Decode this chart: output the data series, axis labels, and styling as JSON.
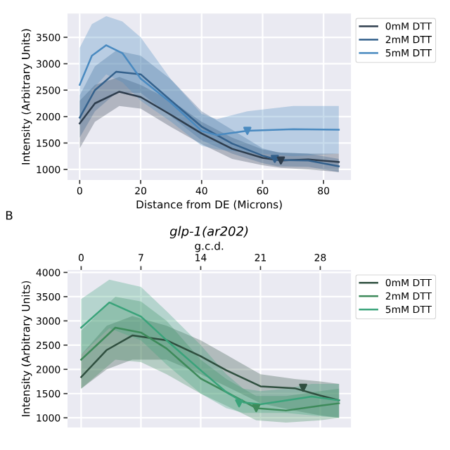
{
  "chart_data": [
    {
      "type": "line",
      "xlabel": "Distance from DE (Microns)",
      "ylabel": "Intensity (Arbitrary Units)",
      "xlim": [
        -4,
        89
      ],
      "xticks": [
        0,
        20,
        40,
        60,
        80
      ],
      "ylim": [
        800,
        3950
      ],
      "yticks": [
        1000,
        1500,
        2000,
        2500,
        3000,
        3500
      ],
      "grid": true,
      "legend": "right",
      "series": [
        {
          "name": "0mM DTT",
          "color": "#2e3d4d",
          "x": [
            0,
            5,
            13,
            20,
            30,
            40,
            50,
            60,
            66,
            75,
            85
          ],
          "values": [
            1870,
            2250,
            2470,
            2370,
            2030,
            1680,
            1390,
            1220,
            1170,
            1190,
            1140
          ],
          "lower": [
            1400,
            1900,
            2200,
            2150,
            1800,
            1480,
            1200,
            1080,
            1030,
            1000,
            950
          ],
          "upper": [
            2300,
            2600,
            2750,
            2600,
            2300,
            1900,
            1600,
            1380,
            1320,
            1300,
            1300
          ]
        },
        {
          "name": "2mM DTT",
          "color": "#34618c",
          "x": [
            0,
            5,
            12,
            20,
            30,
            40,
            50,
            60,
            65,
            75,
            85
          ],
          "values": [
            1980,
            2500,
            2850,
            2800,
            2300,
            1810,
            1490,
            1260,
            1180,
            1170,
            1060
          ],
          "lower": [
            1600,
            2100,
            2450,
            2450,
            2000,
            1550,
            1300,
            1120,
            1060,
            1050,
            950
          ],
          "upper": [
            2400,
            2950,
            3250,
            3150,
            2700,
            2100,
            1750,
            1400,
            1320,
            1300,
            1200
          ]
        },
        {
          "name": "5mM DTT",
          "color": "#4a8ac0",
          "x": [
            0,
            4,
            8.7,
            14,
            20,
            30,
            40,
            45,
            55,
            70,
            85
          ],
          "values": [
            2600,
            3150,
            3350,
            3200,
            2720,
            2260,
            1730,
            1650,
            1730,
            1760,
            1750
          ],
          "lower": [
            1900,
            2500,
            2800,
            2650,
            2300,
            1900,
            1450,
            1380,
            1320,
            1250,
            1300
          ],
          "upper": [
            3300,
            3750,
            3900,
            3800,
            3500,
            2700,
            2050,
            1950,
            2100,
            2200,
            2200
          ]
        },
        {
          "type": "scatter",
          "marker": "triangle",
          "color": "#4a8ac0",
          "x": [
            55
          ],
          "values": [
            1730
          ]
        },
        {
          "type": "scatter",
          "marker": "triangle",
          "color": "#34618c",
          "x": [
            64
          ],
          "values": [
            1200
          ]
        },
        {
          "type": "scatter",
          "marker": "triangle",
          "color": "#2e3d4d",
          "x": [
            66
          ],
          "values": [
            1170
          ]
        }
      ]
    },
    {
      "type": "line",
      "title": "glp-1(ar202)",
      "xlabel": "g.c.d.",
      "ylabel": "Intensity (Arbitrary Units)",
      "xlim": [
        -1.6,
        31.6
      ],
      "xticks": [
        0,
        7,
        14,
        21,
        28
      ],
      "ylim": [
        800,
        4050
      ],
      "yticks": [
        1000,
        1500,
        2000,
        2500,
        3000,
        3500,
        4000
      ],
      "grid": true,
      "legend": "right",
      "annotations": [
        "B"
      ],
      "series": [
        {
          "name": "0mM DTT",
          "color": "#2f4f3f",
          "x": [
            0,
            3,
            6,
            10,
            14,
            17,
            21,
            25,
            28,
            30.2
          ],
          "values": [
            1840,
            2400,
            2700,
            2600,
            2270,
            1980,
            1650,
            1610,
            1460,
            1360
          ],
          "lower": [
            1600,
            2000,
            2200,
            2200,
            1900,
            1650,
            1300,
            1150,
            1050,
            1000
          ],
          "upper": [
            2300,
            2900,
            3100,
            2900,
            2600,
            2300,
            1900,
            1800,
            1750,
            1700
          ]
        },
        {
          "name": "2mM DTT",
          "color": "#3d8a5a",
          "x": [
            0,
            4,
            7,
            10,
            14,
            17,
            20.5,
            24,
            28,
            30.2
          ],
          "values": [
            2200,
            2860,
            2760,
            2430,
            1810,
            1530,
            1200,
            1150,
            1250,
            1300
          ],
          "lower": [
            1600,
            2200,
            2150,
            1900,
            1500,
            1250,
            950,
            900,
            950,
            1000
          ],
          "upper": [
            2800,
            3500,
            3400,
            3000,
            2200,
            1800,
            1450,
            1450,
            1550,
            1600
          ]
        },
        {
          "name": "5mM DTT",
          "color": "#3aa37a",
          "x": [
            0,
            3.3,
            7,
            10,
            14,
            17,
            19,
            21,
            24,
            27,
            30.2
          ],
          "values": [
            2860,
            3380,
            3090,
            2600,
            1980,
            1530,
            1320,
            1280,
            1360,
            1440,
            1360
          ],
          "lower": [
            2300,
            2850,
            2600,
            2100,
            1500,
            1200,
            1100,
            1100,
            1100,
            1050,
            1000
          ],
          "upper": [
            3450,
            3850,
            3700,
            3200,
            2500,
            1900,
            1600,
            1550,
            1600,
            1700,
            1700
          ]
        },
        {
          "type": "scatter",
          "marker": "triangle",
          "color": "#2f4f3f",
          "x": [
            26
          ],
          "values": [
            1620
          ]
        },
        {
          "type": "scatter",
          "marker": "triangle",
          "color": "#3d8a5a",
          "x": [
            20.5
          ],
          "values": [
            1200
          ]
        },
        {
          "type": "scatter",
          "marker": "triangle",
          "color": "#3aa37a",
          "x": [
            18.5
          ],
          "values": [
            1300
          ]
        }
      ]
    }
  ]
}
